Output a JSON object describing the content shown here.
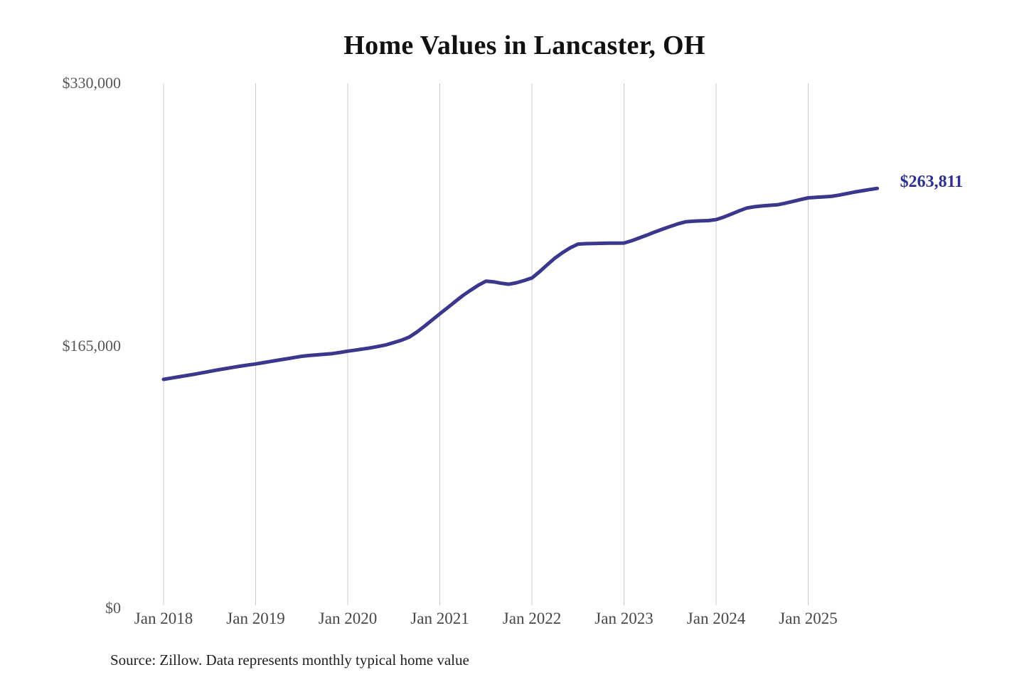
{
  "chart": {
    "title": "Home Values in Lancaster, OH",
    "source_note": "Source: Zillow. Data represents monthly typical home value"
  },
  "colors": {
    "line": "#3a378c",
    "end_label_text": "#2e3092",
    "gridline": "#cccccc",
    "y_tick_text": "#575757",
    "x_tick_text": "#474747",
    "title_text": "#111111",
    "source_text": "#1f1f1f",
    "background": "#ffffff"
  },
  "chart_data": {
    "type": "line",
    "title": "Home Values in Lancaster, OH",
    "xlabel": "",
    "ylabel": "",
    "unit": "USD",
    "ylim": [
      0,
      330000
    ],
    "grid": "vertical-yearly-gridlines",
    "legend": "none",
    "x_tick_labels": [
      "Jan 2018",
      "Jan 2019",
      "Jan 2020",
      "Jan 2021",
      "Jan 2022",
      "Jan 2023",
      "Jan 2024",
      "Jan 2025"
    ],
    "y_ticks": [
      {
        "label": "$330,000",
        "value": 330000
      },
      {
        "label": "$165,000",
        "value": 165000
      },
      {
        "label": "$0",
        "value": 0
      }
    ],
    "end_label": "$263,811",
    "final_value": 263811,
    "series": [
      {
        "name": "Monthly typical home value",
        "start_month": "2018-01",
        "end_month": "2025-10",
        "frequency": "monthly",
        "values": [
          143800,
          144600,
          145400,
          146200,
          147000,
          147900,
          148800,
          149700,
          150500,
          151300,
          152100,
          152800,
          153500,
          154300,
          155100,
          155900,
          156700,
          157500,
          158300,
          158800,
          159200,
          159600,
          160000,
          160700,
          161500,
          162200,
          162900,
          163600,
          164500,
          165500,
          166900,
          168400,
          170300,
          173500,
          177200,
          181100,
          185000,
          188800,
          192700,
          196500,
          199800,
          202900,
          205500,
          205100,
          204200,
          203600,
          204500,
          205900,
          207500,
          211500,
          215800,
          220000,
          223500,
          226500,
          228800,
          229100,
          229200,
          229300,
          229400,
          229400,
          229500,
          230900,
          232700,
          234500,
          236400,
          238200,
          239900,
          241500,
          242800,
          243200,
          243400,
          243600,
          244200,
          245800,
          247700,
          249700,
          251500,
          252300,
          252800,
          253200,
          253500,
          254500,
          255600,
          256800,
          257900,
          258200,
          258500,
          258800,
          259600,
          260500,
          261500,
          262300,
          263100,
          263811
        ]
      }
    ]
  }
}
